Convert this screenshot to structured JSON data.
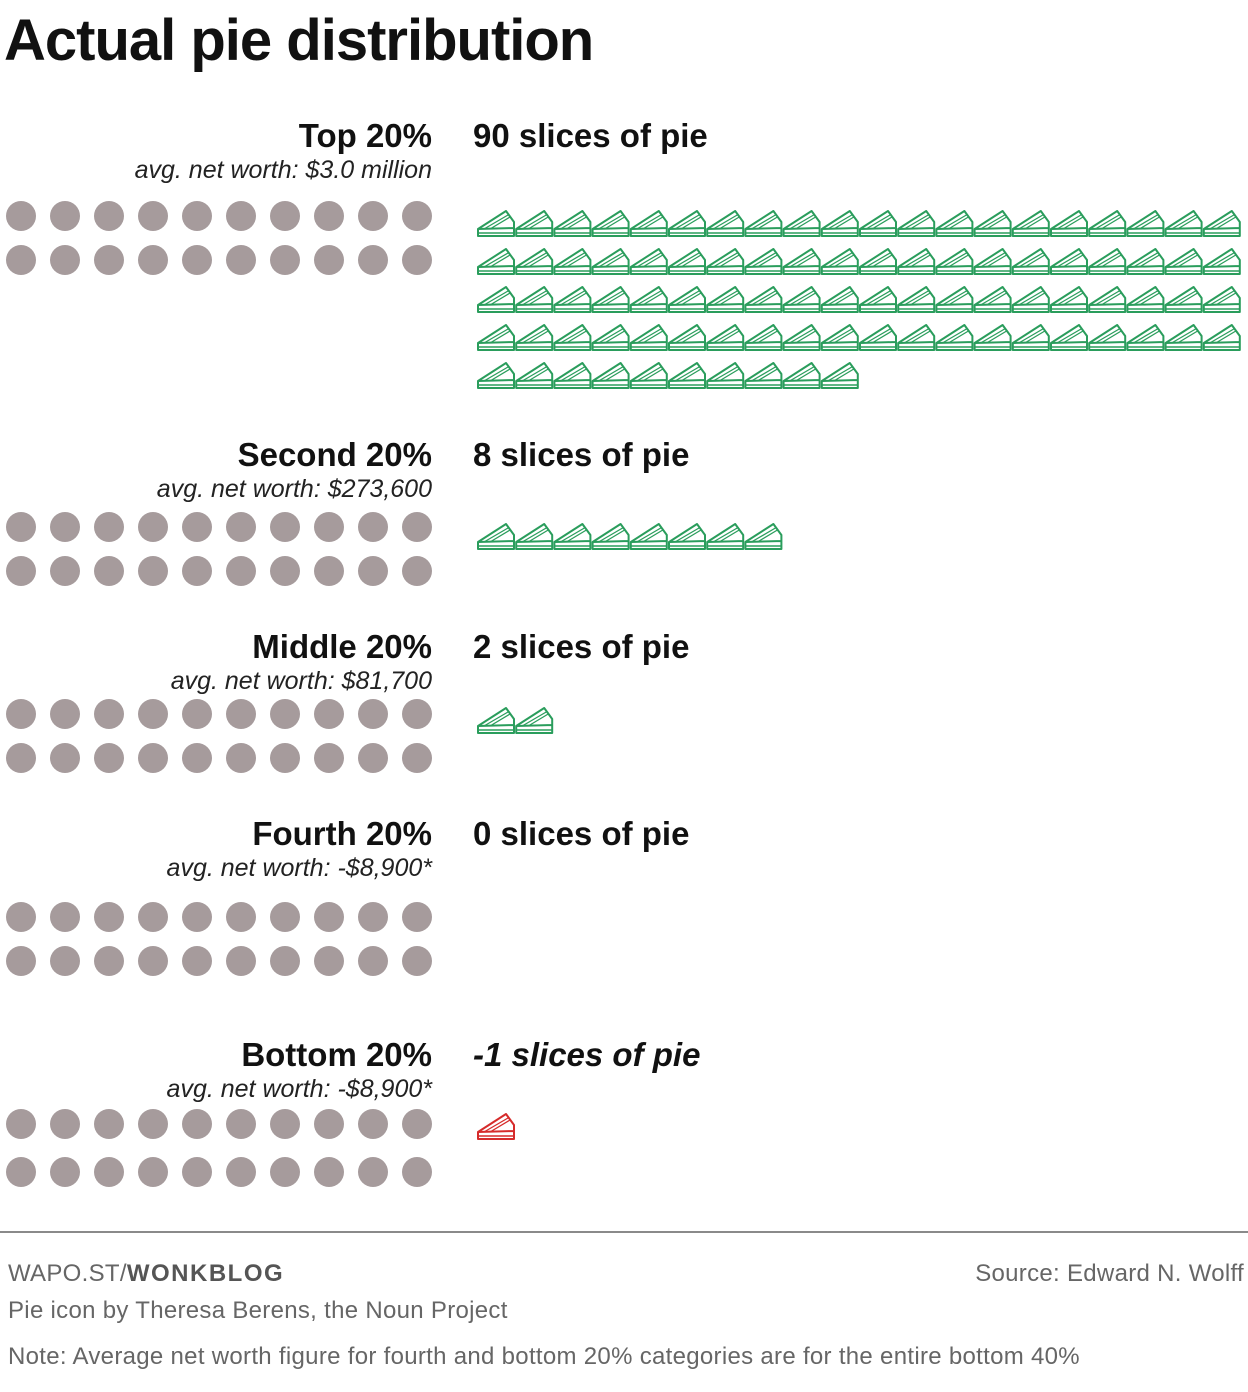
{
  "title": "Actual pie distribution",
  "chart_data": {
    "type": "pictogram",
    "title": "Actual pie distribution",
    "unit": "slices of pie",
    "people_dots_per_group": 20,
    "colors": {
      "positive_slice": "#2a9d5c",
      "negative_slice": "#d62b2b",
      "dot": "#a69b9c"
    },
    "groups": [
      {
        "name": "Top 20%",
        "subtitle": "avg. net worth: $3.0 million",
        "slices": 90,
        "slices_label": "90 slices of pie"
      },
      {
        "name": "Second 20%",
        "subtitle": "avg. net worth: $273,600",
        "slices": 8,
        "slices_label": "8 slices of pie"
      },
      {
        "name": "Middle 20%",
        "subtitle": "avg. net worth: $81,700",
        "slices": 2,
        "slices_label": "2 slices of pie"
      },
      {
        "name": "Fourth 20%",
        "subtitle": "avg. net worth: -$8,900*",
        "slices": 0,
        "slices_label": "0 slices of pie"
      },
      {
        "name": "Bottom 20%",
        "subtitle": "avg. net worth: -$8,900*",
        "slices": -1,
        "slices_label": "-1 slices of pie"
      }
    ]
  },
  "footer": {
    "credit_prefix": "WAPO.ST/",
    "credit_bold": "WONKBLOG",
    "source": "Source: Edward N. Wolff",
    "icon_credit": "Pie icon by Theresa Berens, the Noun Project",
    "note": "Note: Average net worth figure for fourth and bottom 20% categories are for the entire bottom 40%"
  }
}
